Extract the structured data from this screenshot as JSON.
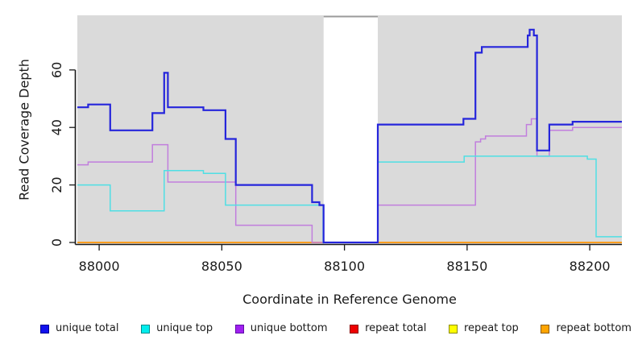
{
  "chart_data": {
    "type": "line",
    "subtype": "step-coverage",
    "title": "",
    "xlabel": "Coordinate in Reference Genome",
    "ylabel": "Read Coverage Depth",
    "xlim": [
      87991.1,
      88213.1
    ],
    "ylim": [
      0,
      79
    ],
    "x_ticks": [
      "88000",
      "88050",
      "88100",
      "88150",
      "88200"
    ],
    "x_tick_values": [
      88000,
      88050,
      88100,
      88150,
      88200
    ],
    "y_ticks": [
      "0",
      "20",
      "40",
      "60"
    ],
    "y_tick_values": [
      0,
      20,
      40,
      60
    ],
    "grid": false,
    "plot_bg": "#dadada",
    "axis_color": "#1a1a1a",
    "masked_region": {
      "x0": 88091.5,
      "x1": 88113.6,
      "fill": "#ffffff",
      "top_border": "#9a9a9a"
    },
    "legend_position": "bottom",
    "series": [
      {
        "name": "repeat total",
        "color": "#DD0000",
        "width": 1.5,
        "steps": [
          [
            87991.1,
            0
          ]
        ]
      },
      {
        "name": "repeat top",
        "color": "#FFFF00",
        "width": 1.5,
        "steps": [
          [
            87991.1,
            0
          ]
        ]
      },
      {
        "name": "repeat bottom",
        "color": "#FF9E20",
        "width": 2,
        "steps": [
          [
            87991.1,
            0
          ]
        ]
      },
      {
        "name": "unique bottom",
        "color": "#C17EDD",
        "width": 1.5,
        "steps": [
          [
            87991.1,
            27
          ],
          [
            87995.5,
            28
          ],
          [
            88021.7,
            34
          ],
          [
            88028,
            21
          ],
          [
            88055.7,
            6
          ],
          [
            88086.8,
            0
          ],
          [
            88113.6,
            13
          ],
          [
            88153.4,
            35
          ],
          [
            88155.5,
            36
          ],
          [
            88157.5,
            37
          ],
          [
            88174.2,
            41
          ],
          [
            88176.2,
            43
          ],
          [
            88178.5,
            30
          ],
          [
            88183.5,
            39
          ],
          [
            88193,
            40
          ]
        ]
      },
      {
        "name": "unique top",
        "color": "#4FDFE4",
        "width": 1.5,
        "steps": [
          [
            87991.1,
            20
          ],
          [
            88004.5,
            11
          ],
          [
            88026.5,
            25
          ],
          [
            88042.5,
            24
          ],
          [
            88051.5,
            13
          ],
          [
            88091.3,
            0
          ],
          [
            88113.6,
            28
          ],
          [
            88148.8,
            30
          ],
          [
            88199,
            29
          ],
          [
            88202.6,
            2
          ]
        ]
      },
      {
        "name": "unique total",
        "color": "#2525DB",
        "width": 2.2,
        "steps": [
          [
            87991.1,
            47
          ],
          [
            87995.5,
            48
          ],
          [
            88004.5,
            39
          ],
          [
            88021.7,
            45
          ],
          [
            88026.5,
            59
          ],
          [
            88028,
            47
          ],
          [
            88042.5,
            46
          ],
          [
            88051.5,
            36
          ],
          [
            88055.7,
            20
          ],
          [
            88086.8,
            14
          ],
          [
            88089.8,
            13
          ],
          [
            88091.5,
            0
          ],
          [
            88113.6,
            41
          ],
          [
            88148.5,
            43
          ],
          [
            88153.4,
            66
          ],
          [
            88156,
            68
          ],
          [
            88174.7,
            72
          ],
          [
            88175.5,
            74
          ],
          [
            88177.2,
            72
          ],
          [
            88178.5,
            32
          ],
          [
            88183.5,
            41
          ],
          [
            88193,
            42
          ]
        ]
      }
    ],
    "legend": [
      {
        "label": "unique total",
        "fill": "#1111EE",
        "border": "#000090"
      },
      {
        "label": "unique top",
        "fill": "#00EDED",
        "border": "#008B8B"
      },
      {
        "label": "unique bottom",
        "fill": "#A020F0",
        "border": "#600DA8"
      },
      {
        "label": "repeat total",
        "fill": "#EE0000",
        "border": "#8B0000"
      },
      {
        "label": "repeat top",
        "fill": "#FFFF00",
        "border": "#8B8B00"
      },
      {
        "label": "repeat bottom",
        "fill": "#FFA500",
        "border": "#8B5A00"
      }
    ]
  }
}
